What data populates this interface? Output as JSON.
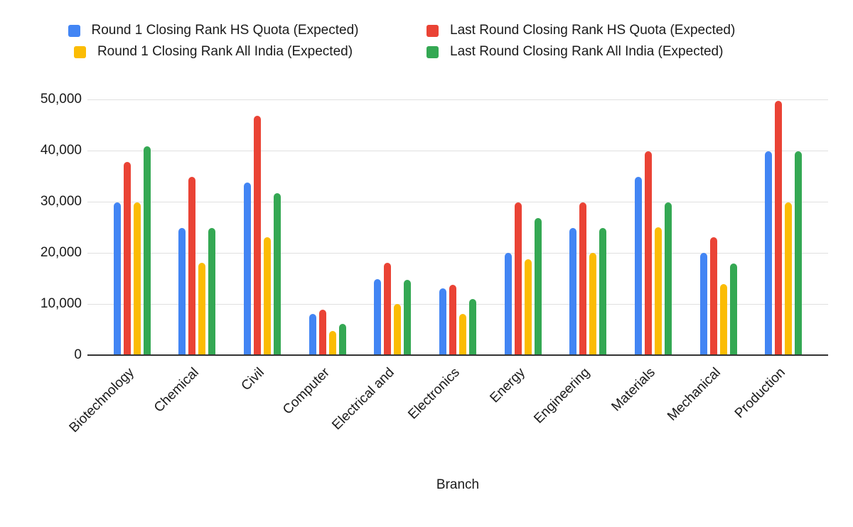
{
  "chart_data": {
    "type": "bar",
    "title": "",
    "xlabel": "Branch",
    "ylabel": "",
    "ylim": [
      0,
      50000
    ],
    "ytick_step": 10000,
    "ytick_labels": [
      "0",
      "10,000",
      "20,000",
      "30,000",
      "40,000",
      "50,000"
    ],
    "grid": true,
    "legend_position": "top",
    "categories": [
      "Biotechnology",
      "Chemical",
      "Civil",
      "Computer",
      "Electrical and",
      "Electronics",
      "Energy",
      "Engineering",
      "Materials",
      "Mechanical",
      "Production"
    ],
    "series": [
      {
        "name": "Round 1 Closing Rank HS Quota (Expected)",
        "color": "#4285F4",
        "values": [
          29800,
          24900,
          33700,
          8000,
          14900,
          13000,
          20000,
          24900,
          34800,
          20000,
          39800
        ]
      },
      {
        "name": "Last Round Closing Rank HS Quota (Expected)",
        "color": "#EA4335",
        "values": [
          37800,
          34800,
          46800,
          8900,
          18000,
          13800,
          29800,
          29800,
          39800,
          23000,
          49700
        ]
      },
      {
        "name": "Round 1 Closing Rank All India (Expected)",
        "color": "#FBBC04",
        "values": [
          29800,
          18000,
          23000,
          4700,
          10000,
          8000,
          18700,
          20000,
          25000,
          13900,
          29900
        ]
      },
      {
        "name": "Last Round Closing Rank All India (Expected)",
        "color": "#34A853",
        "values": [
          40800,
          24900,
          31700,
          6100,
          14700,
          11000,
          26800,
          24900,
          29800,
          17900,
          39800
        ]
      }
    ]
  }
}
